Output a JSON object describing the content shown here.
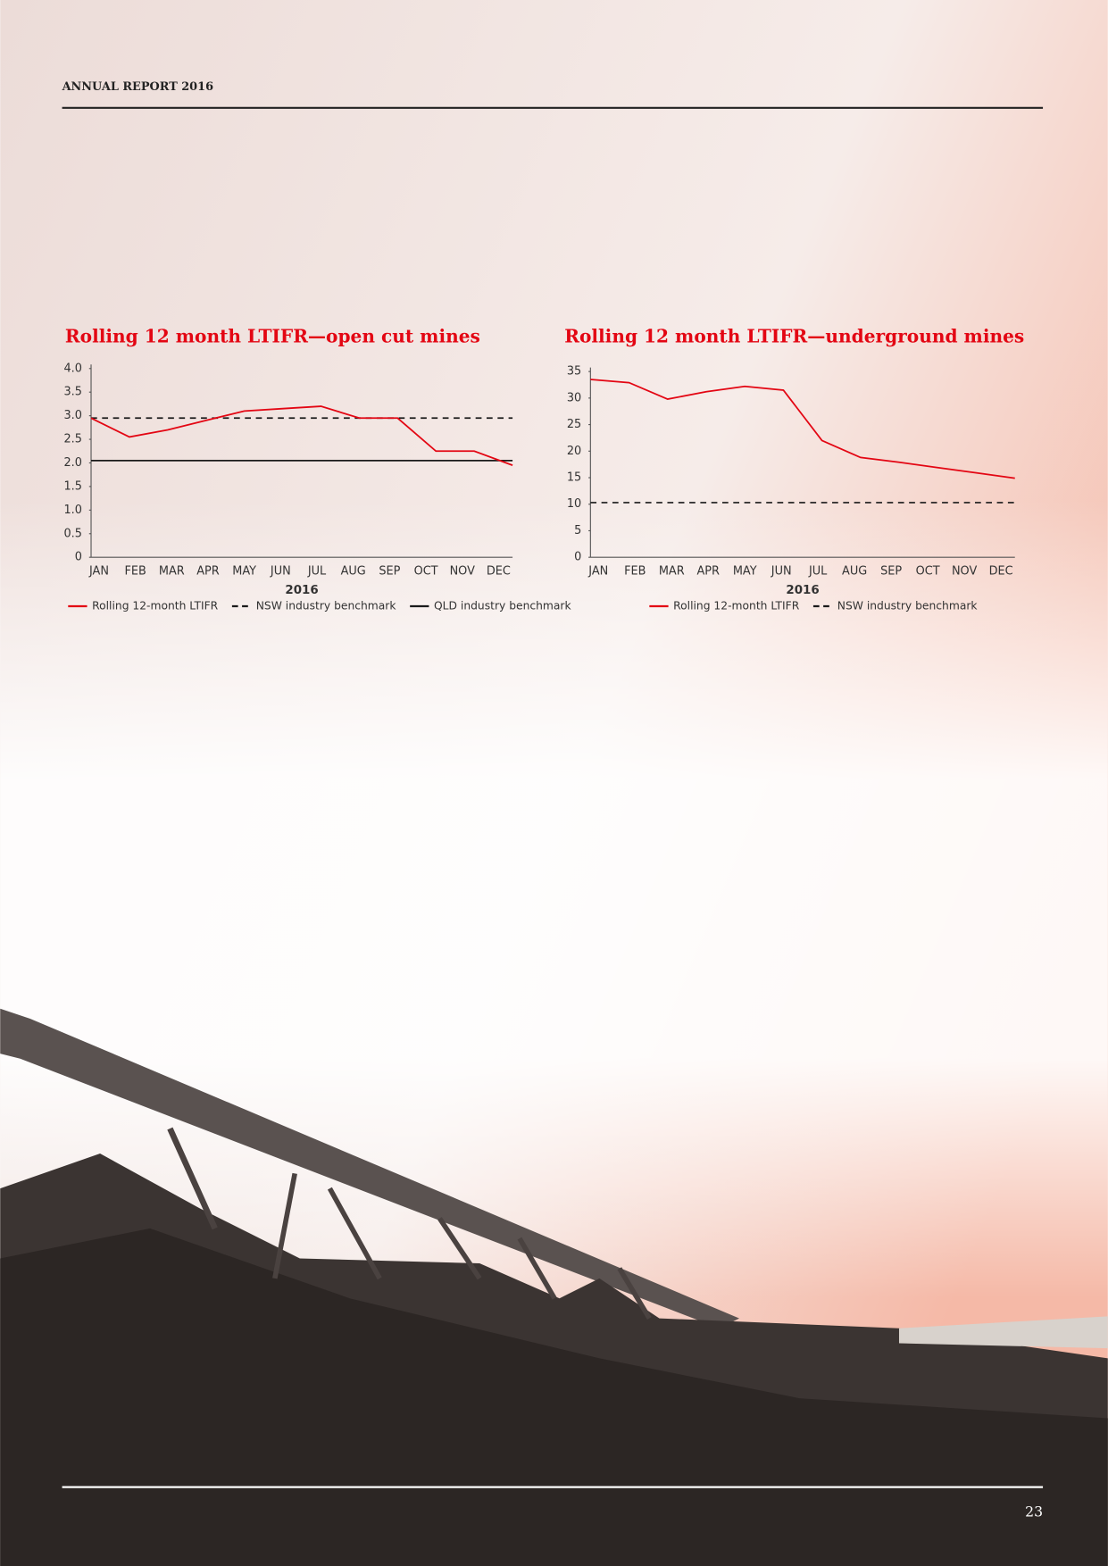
{
  "header": "ANNUAL REPORT 2016",
  "page_number": "23",
  "chart_data": [
    {
      "type": "line",
      "title": "Rolling 12 month LTIFR—open cut mines",
      "categories": [
        "JAN",
        "FEB",
        "MAR",
        "APR",
        "MAY",
        "JUN",
        "JUL",
        "AUG",
        "SEP",
        "OCT",
        "NOV",
        "DEC"
      ],
      "x_label": "2016",
      "ylim": [
        0,
        4
      ],
      "yticks": [
        0,
        {
          "value": 0.5,
          "label": "0.5"
        },
        {
          "value": 1,
          "label": "1.0"
        },
        {
          "value": 1.5,
          "label": "1.5"
        },
        {
          "value": 2,
          "label": "2.0"
        },
        {
          "value": 2.5,
          "label": "2.5"
        },
        {
          "value": 3,
          "label": "3.0"
        },
        {
          "value": 3.5,
          "label": "3.5"
        },
        {
          "value": 4,
          "label": "4.0"
        }
      ],
      "series": [
        {
          "name": "Rolling 12-month LTIFR",
          "color": "#e30613",
          "dash": false,
          "values": [
            2.95,
            2.55,
            2.7,
            2.9,
            3.1,
            3.15,
            3.2,
            2.95,
            2.95,
            2.25,
            2.25,
            1.95
          ]
        },
        {
          "name": "NSW industry benchmark",
          "color": "#1a1a1a",
          "dash": true,
          "values": [
            2.95,
            2.95,
            2.95,
            2.95,
            2.95,
            2.95,
            2.95,
            2.95,
            2.95,
            2.95,
            2.95,
            2.95
          ]
        },
        {
          "name": "QLD industry benchmark",
          "color": "#1a1a1a",
          "dash": false,
          "values": [
            2.05,
            2.05,
            2.05,
            2.05,
            2.05,
            2.05,
            2.05,
            2.05,
            2.05,
            2.05,
            2.05,
            2.05
          ]
        }
      ]
    },
    {
      "type": "line",
      "title": "Rolling 12 month LTIFR—underground mines",
      "categories": [
        "JAN",
        "FEB",
        "MAR",
        "APR",
        "MAY",
        "JUN",
        "JUL",
        "AUG",
        "SEP",
        "OCT",
        "NOV",
        "DEC"
      ],
      "x_label": "2016",
      "ylim": [
        0,
        35
      ],
      "yticks": [
        0,
        5,
        10,
        15,
        20,
        25,
        30,
        35
      ],
      "series": [
        {
          "name": "Rolling 12-month LTIFR",
          "color": "#e30613",
          "dash": false,
          "values": [
            33.5,
            32.9,
            29.8,
            31.2,
            32.2,
            31.5,
            22.0,
            18.8,
            17.9,
            16.9,
            15.9,
            14.9
          ]
        },
        {
          "name": "NSW industry benchmark",
          "color": "#1a1a1a",
          "dash": true,
          "values": [
            10.3,
            10.3,
            10.3,
            10.3,
            10.3,
            10.3,
            10.3,
            10.3,
            10.3,
            10.3,
            10.3,
            10.3
          ]
        }
      ]
    }
  ]
}
